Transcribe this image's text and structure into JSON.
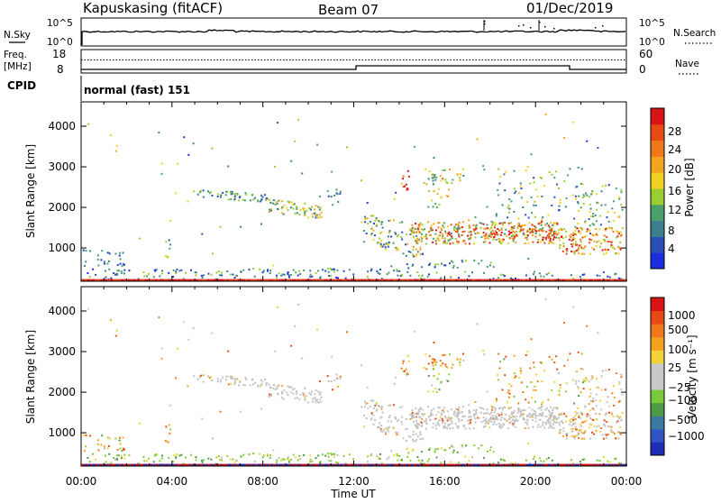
{
  "header": {
    "station": "Kapuskasing (fitACF)",
    "beam": "Beam 07",
    "date": "01/Dec/2019"
  },
  "noise_panel": {
    "left_label": "N.Sky",
    "right_label": "N.Search",
    "ticks": [
      "10^5",
      "10^0"
    ]
  },
  "freq_panel": {
    "left_label": "Freq.",
    "left_unit": "[MHz]",
    "left_ticks": [
      "18",
      "8"
    ],
    "right_label": "Nave",
    "right_ticks": [
      "60",
      "0"
    ]
  },
  "cpid_panel": {
    "label": "CPID",
    "mode": "normal (fast) 151"
  },
  "chart_data": [
    {
      "type": "heatmap",
      "name": "power",
      "ylabel": "Slant Range [km]",
      "ylim": [
        180,
        4600
      ],
      "yticks": [
        1000,
        2000,
        3000,
        4000
      ],
      "xlim": [
        0,
        24
      ],
      "colorbar": {
        "label": "Power [dB]",
        "ticks": [
          "4",
          "8",
          "12",
          "16",
          "20",
          "24",
          "28"
        ],
        "colors": [
          "#1a2ee0",
          "#2a4fb8",
          "#3b7f8f",
          "#4aa06a",
          "#9acd32",
          "#f0d020",
          "#f2a51f",
          "#f07818",
          "#e84a14",
          "#d81414"
        ]
      }
    },
    {
      "type": "heatmap",
      "name": "velocity",
      "ylabel": "Slant Range [km]",
      "ylim": [
        180,
        4600
      ],
      "yticks": [
        1000,
        2000,
        3000,
        4000
      ],
      "xlim": [
        0,
        24
      ],
      "colorbar": {
        "label": "Velocity [m s⁻¹]",
        "ticks": [
          "1000",
          "500",
          "100",
          "25",
          "−25",
          "−100",
          "−500",
          "−1000"
        ],
        "colors": [
          "#1d2db8",
          "#2f53c2",
          "#3b7aa0",
          "#4f9a45",
          "#79c93b",
          "#c9c9c9",
          "#c9c9c9",
          "#f2d33a",
          "#f2a21f",
          "#f07818",
          "#e84a14",
          "#d81414"
        ]
      }
    }
  ],
  "x_axis": {
    "ticks": [
      "00:00",
      "04:00",
      "08:00",
      "12:00",
      "16:00",
      "20:00",
      "00:00"
    ],
    "label": "Time UT"
  }
}
